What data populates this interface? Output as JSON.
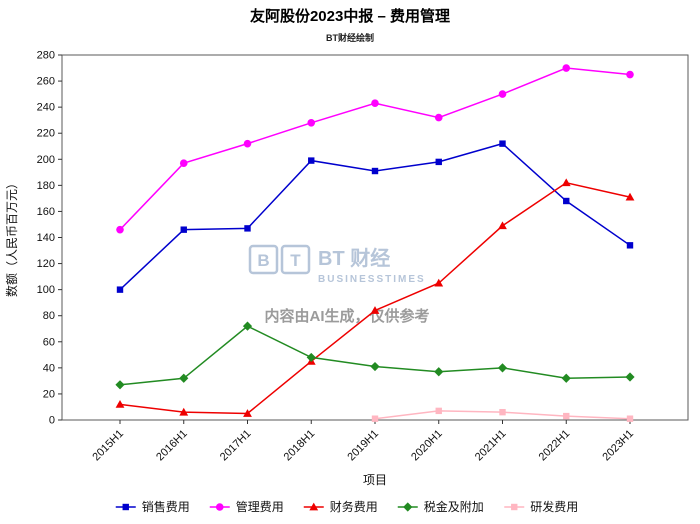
{
  "chart_data": {
    "type": "line",
    "title": "友阿股份2023中报 – 费用管理",
    "subtitle": "BT财经绘制",
    "xlabel": "项目",
    "ylabel": "数额（人民币百万元）",
    "ylim": [
      0,
      280
    ],
    "ytick_step": 20,
    "grid": false,
    "legend_position": "bottom",
    "categories": [
      "2015H1",
      "2016H1",
      "2017H1",
      "2018H1",
      "2019H1",
      "2020H1",
      "2021H1",
      "2022H1",
      "2023H1"
    ],
    "series": [
      {
        "name": "销售费用",
        "color": "#0000cd",
        "marker": "square",
        "values": [
          100,
          146,
          147,
          199,
          191,
          198,
          212,
          168,
          134
        ]
      },
      {
        "name": "管理费用",
        "color": "#ff00ff",
        "marker": "circle",
        "values": [
          146,
          197,
          212,
          228,
          243,
          232,
          250,
          270,
          265
        ]
      },
      {
        "name": "财务费用",
        "color": "#ee0000",
        "marker": "triangle",
        "values": [
          12,
          6,
          5,
          45,
          84,
          105,
          149,
          182,
          171
        ]
      },
      {
        "name": "税金及附加",
        "color": "#228b22",
        "marker": "diamond",
        "values": [
          27,
          32,
          72,
          48,
          41,
          37,
          40,
          32,
          33
        ]
      },
      {
        "name": "研发费用",
        "color": "#ffb6c1",
        "marker": "square",
        "values": [
          null,
          null,
          null,
          null,
          1,
          7,
          6,
          3,
          1
        ]
      }
    ]
  },
  "watermark": {
    "logo_letters": [
      "B",
      "T"
    ],
    "brand": "BT 财经",
    "brand_sub": "BUSINESSTIMES",
    "disclaimer": "内容由AI生成，仅供参考"
  }
}
